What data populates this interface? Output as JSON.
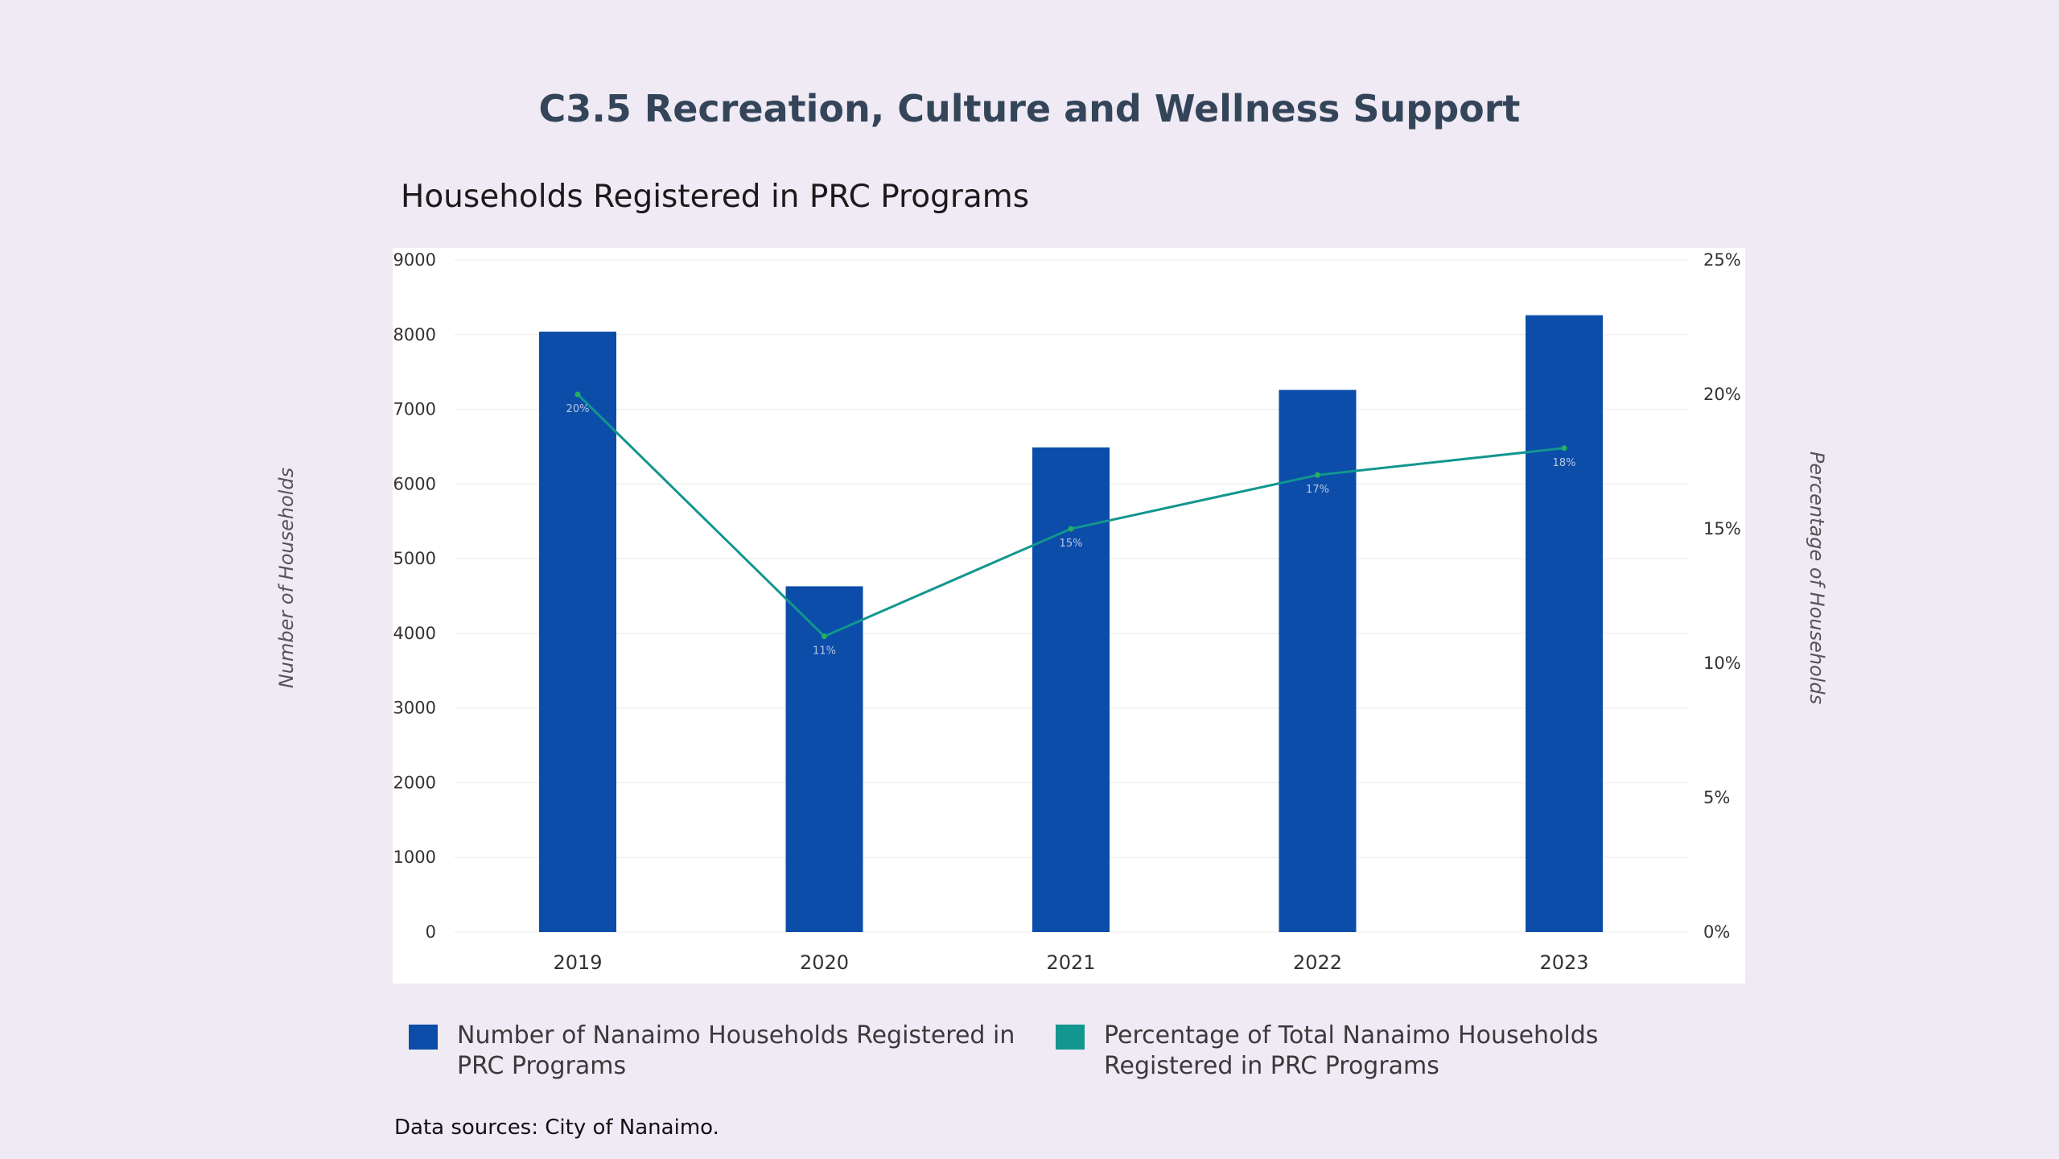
{
  "page": {
    "title": "C3.5 Recreation, Culture and Wellness Support",
    "source": "Data sources: City of Nanaimo."
  },
  "colors": {
    "background": "#efeaf4",
    "bar": "#0b4da8",
    "line": "#12968f",
    "line_marker": "#27ae60",
    "title": "#34455a"
  },
  "chart_data": {
    "type": "bar",
    "title": "Households Registered in PRC Programs",
    "categories": [
      "2019",
      "2020",
      "2021",
      "2022",
      "2023"
    ],
    "series": [
      {
        "name": "Number of Nanaimo Households Registered in PRC Programs",
        "type": "bar",
        "axis": "left",
        "values": [
          8040,
          4630,
          6490,
          7260,
          8260
        ]
      },
      {
        "name": "Percentage of Total Nanaimo Households Registered in PRC Programs",
        "type": "line",
        "axis": "right",
        "values": [
          20,
          11,
          15,
          17,
          18
        ],
        "data_labels": [
          "20%",
          "11%",
          "15%",
          "17%",
          "18%"
        ]
      }
    ],
    "ylabel": "Number of Households",
    "ylabel_right": "Percentage of Households",
    "ylim": [
      0,
      9000
    ],
    "ylim_right": [
      0,
      25
    ],
    "yticks": [
      "0",
      "1000",
      "2000",
      "3000",
      "4000",
      "5000",
      "6000",
      "7000",
      "8000",
      "9000"
    ],
    "yticks_right": [
      "0%",
      "5%",
      "10%",
      "15%",
      "20%",
      "25%"
    ],
    "grid": true,
    "legend_position": "bottom"
  }
}
